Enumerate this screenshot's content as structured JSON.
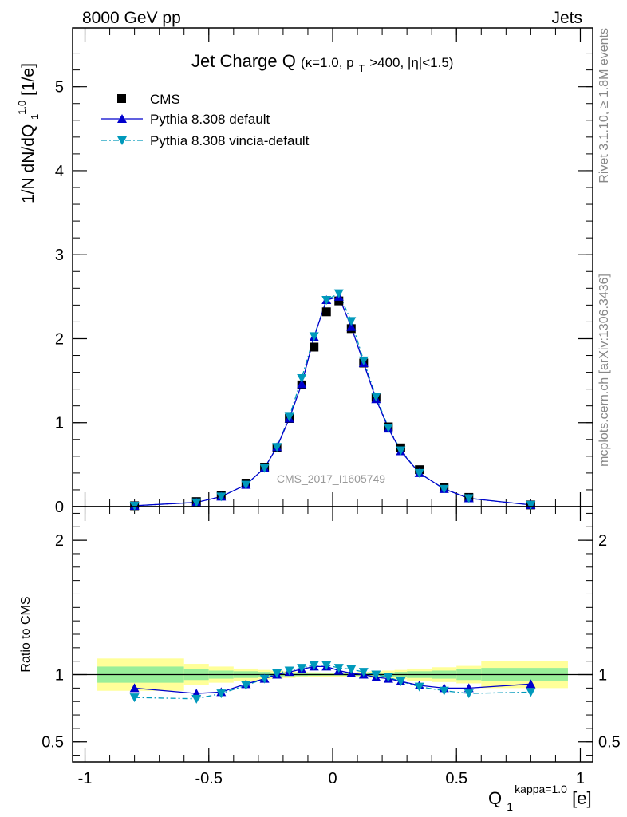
{
  "header": {
    "left": "8000 GeV pp",
    "right": "Jets"
  },
  "side_labels": {
    "rivet": "Rivet 3.1.10, ≥ 1.8M events",
    "mcplots": "mcplots.cern.ch [arXiv:1306.3436]"
  },
  "watermark": "CMS_2017_I1605749",
  "title": {
    "main": "Jet Charge Q",
    "kappa": "(κ=1.0, p",
    "pt_sub": "T",
    "rest": ">400, |η|<1.5)"
  },
  "ylabel_main": {
    "a": "1/N dN/dQ",
    "sub": "1",
    "sup": "1.0",
    "b": " [1/e]"
  },
  "ylabel_ratio": "Ratio to CMS",
  "xlabel": {
    "q": "Q",
    "sub": "1",
    "sup": "kappa=1.0",
    "unit": " [e]"
  },
  "colors": {
    "cms": "#000000",
    "pythia_default": "#0000cc",
    "pythia_vincia": "#0099bb",
    "band_inner": "#99ee99",
    "band_outer": "#ffff99"
  },
  "chart_data": {
    "type": "line",
    "xlim": [
      -1.05,
      1.05
    ],
    "ylim_main": [
      0,
      5.7
    ],
    "ylim_ratio": [
      0.35,
      2.25
    ],
    "x_ticks": [
      "-1",
      "-0.5",
      "0",
      "0.5",
      "1"
    ],
    "x_tick_values": [
      -1,
      -0.5,
      0,
      0.5,
      1
    ],
    "y_ticks_main": [
      "0",
      "1",
      "2",
      "3",
      "4",
      "5"
    ],
    "y_tick_values_main": [
      0,
      1,
      2,
      3,
      4,
      5
    ],
    "y_ticks_ratio": [
      "0.5",
      "1",
      "2"
    ],
    "y_tick_values_ratio": [
      0.5,
      1,
      2
    ],
    "legend": {
      "placement": "top-left",
      "entries": [
        "CMS",
        "Pythia 8.308 default",
        "Pythia 8.308 vincia-default"
      ]
    },
    "x": [
      -0.8,
      -0.55,
      -0.45,
      -0.35,
      -0.275,
      -0.225,
      -0.175,
      -0.125,
      -0.075,
      -0.025,
      0.025,
      0.075,
      0.125,
      0.175,
      0.225,
      0.275,
      0.35,
      0.45,
      0.55,
      0.8
    ],
    "series": [
      {
        "name": "CMS",
        "marker": "square",
        "values": [
          0.01,
          0.06,
          0.13,
          0.28,
          0.47,
          0.7,
          1.05,
          1.45,
          1.9,
          2.32,
          2.45,
          2.12,
          1.71,
          1.3,
          0.95,
          0.7,
          0.44,
          0.23,
          0.11,
          0.02
        ]
      },
      {
        "name": "Pythia 8.308 default",
        "marker": "triangle-up",
        "line": "solid",
        "values": [
          0.01,
          0.05,
          0.12,
          0.26,
          0.46,
          0.71,
          1.05,
          1.46,
          2.02,
          2.46,
          2.5,
          2.14,
          1.71,
          1.28,
          0.93,
          0.66,
          0.4,
          0.21,
          0.1,
          0.02
        ]
      },
      {
        "name": "Pythia 8.308 vincia-default",
        "marker": "triangle-down",
        "line": "dashdot",
        "values": [
          0.01,
          0.05,
          0.12,
          0.26,
          0.46,
          0.71,
          1.07,
          1.53,
          2.03,
          2.46,
          2.54,
          2.21,
          1.74,
          1.31,
          0.94,
          0.67,
          0.4,
          0.21,
          0.1,
          0.02
        ]
      }
    ],
    "ratio_series": [
      {
        "name": "Pythia 8.308 default",
        "values": [
          0.9,
          0.86,
          0.87,
          0.93,
          0.97,
          1.0,
          1.02,
          1.04,
          1.06,
          1.06,
          1.03,
          1.01,
          1.0,
          0.98,
          0.97,
          0.95,
          0.92,
          0.9,
          0.9,
          0.93
        ]
      },
      {
        "name": "Pythia 8.308 vincia-default",
        "values": [
          0.83,
          0.82,
          0.86,
          0.92,
          0.97,
          1.01,
          1.03,
          1.05,
          1.07,
          1.07,
          1.05,
          1.04,
          1.02,
          1.0,
          0.98,
          0.95,
          0.91,
          0.88,
          0.86,
          0.87
        ]
      }
    ],
    "uncertainty_bands": {
      "edges": [
        -0.95,
        -0.6,
        -0.5,
        -0.4,
        -0.3,
        -0.25,
        -0.2,
        -0.15,
        -0.1,
        -0.05,
        0,
        0.05,
        0.1,
        0.15,
        0.2,
        0.25,
        0.3,
        0.4,
        0.5,
        0.6,
        0.95
      ],
      "inner": [
        0.06,
        0.04,
        0.03,
        0.025,
        0.02,
        0.015,
        0.012,
        0.01,
        0.008,
        0.007,
        0.007,
        0.008,
        0.01,
        0.012,
        0.015,
        0.02,
        0.025,
        0.03,
        0.04,
        0.05
      ],
      "outer": [
        0.12,
        0.08,
        0.06,
        0.045,
        0.035,
        0.03,
        0.025,
        0.02,
        0.017,
        0.015,
        0.015,
        0.017,
        0.02,
        0.025,
        0.03,
        0.035,
        0.045,
        0.055,
        0.065,
        0.1
      ]
    }
  }
}
